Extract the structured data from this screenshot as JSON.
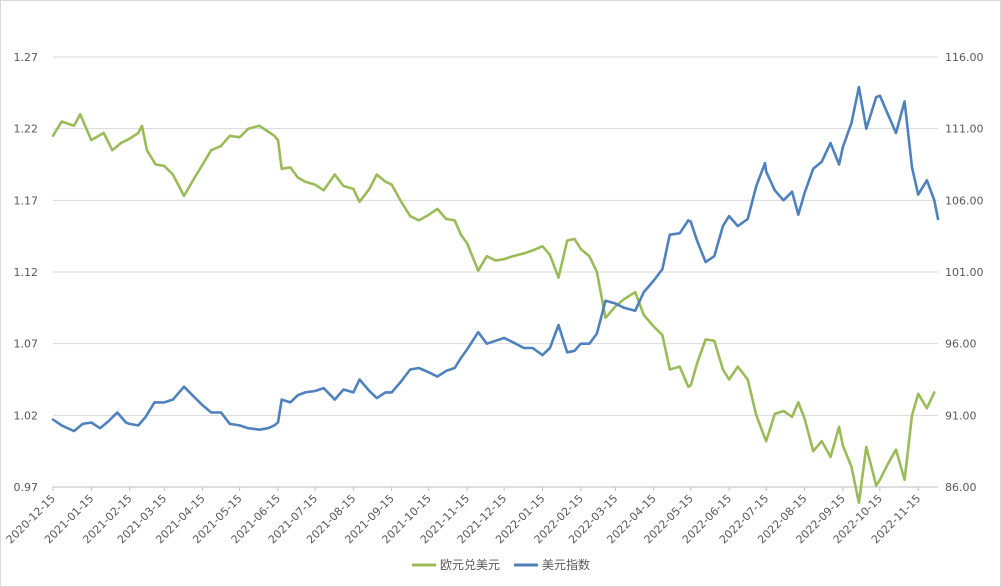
{
  "chart_data": {
    "type": "line",
    "title": "",
    "xlabel": "",
    "ylabel": "",
    "grid": true,
    "legend_position": "bottom",
    "x_tick_labels": [
      "2020-12-15",
      "2021-01-15",
      "2021-02-15",
      "2021-03-15",
      "2021-04-15",
      "2021-05-15",
      "2021-06-15",
      "2021-07-15",
      "2021-08-15",
      "2021-09-15",
      "2021-10-15",
      "2021-11-15",
      "2021-12-15",
      "2022-01-15",
      "2022-02-15",
      "2022-03-15",
      "2022-04-15",
      "2022-05-15",
      "2022-06-15",
      "2022-07-15",
      "2022-08-15",
      "2022-09-15",
      "2022-10-15",
      "2022-11-15"
    ],
    "x_range": [
      "2020-12-15",
      "2022-12-01"
    ],
    "y_left": {
      "min": 0.97,
      "max": 1.27,
      "ticks": [
        "0.97",
        "1.02",
        "1.07",
        "1.12",
        "1.17",
        "1.22",
        "1.27"
      ]
    },
    "y_right": {
      "min": 86,
      "max": 116,
      "ticks": [
        "86.00",
        "91.00",
        "96.00",
        "101.00",
        "106.00",
        "111.00",
        "116.00"
      ]
    },
    "series": [
      {
        "name": "欧元兑美元",
        "axis": "left",
        "color": "#9bbb59",
        "points": [
          [
            "2020-12-15",
            1.215
          ],
          [
            "2020-12-22",
            1.225
          ],
          [
            "2021-01-01",
            1.222
          ],
          [
            "2021-01-06",
            1.23
          ],
          [
            "2021-01-10",
            1.222
          ],
          [
            "2021-01-15",
            1.212
          ],
          [
            "2021-01-25",
            1.217
          ],
          [
            "2021-02-01",
            1.205
          ],
          [
            "2021-02-08",
            1.21
          ],
          [
            "2021-02-15",
            1.213
          ],
          [
            "2021-02-22",
            1.217
          ],
          [
            "2021-02-25",
            1.222
          ],
          [
            "2021-03-01",
            1.205
          ],
          [
            "2021-03-08",
            1.195
          ],
          [
            "2021-03-15",
            1.194
          ],
          [
            "2021-03-22",
            1.188
          ],
          [
            "2021-03-31",
            1.173
          ],
          [
            "2021-04-08",
            1.185
          ],
          [
            "2021-04-15",
            1.195
          ],
          [
            "2021-04-22",
            1.205
          ],
          [
            "2021-04-30",
            1.208
          ],
          [
            "2021-05-07",
            1.215
          ],
          [
            "2021-05-15",
            1.214
          ],
          [
            "2021-05-22",
            1.22
          ],
          [
            "2021-05-31",
            1.222
          ],
          [
            "2021-06-07",
            1.218
          ],
          [
            "2021-06-12",
            1.215
          ],
          [
            "2021-06-15",
            1.212
          ],
          [
            "2021-06-18",
            1.192
          ],
          [
            "2021-06-25",
            1.193
          ],
          [
            "2021-07-01",
            1.186
          ],
          [
            "2021-07-07",
            1.183
          ],
          [
            "2021-07-15",
            1.181
          ],
          [
            "2021-07-22",
            1.177
          ],
          [
            "2021-07-31",
            1.188
          ],
          [
            "2021-08-07",
            1.18
          ],
          [
            "2021-08-15",
            1.178
          ],
          [
            "2021-08-20",
            1.169
          ],
          [
            "2021-08-28",
            1.178
          ],
          [
            "2021-09-03",
            1.188
          ],
          [
            "2021-09-10",
            1.183
          ],
          [
            "2021-09-15",
            1.181
          ],
          [
            "2021-09-22",
            1.17
          ],
          [
            "2021-09-30",
            1.159
          ],
          [
            "2021-10-07",
            1.156
          ],
          [
            "2021-10-15",
            1.16
          ],
          [
            "2021-10-22",
            1.164
          ],
          [
            "2021-10-29",
            1.157
          ],
          [
            "2021-11-05",
            1.156
          ],
          [
            "2021-11-10",
            1.146
          ],
          [
            "2021-11-15",
            1.14
          ],
          [
            "2021-11-24",
            1.121
          ],
          [
            "2021-12-01",
            1.131
          ],
          [
            "2021-12-08",
            1.128
          ],
          [
            "2021-12-15",
            1.129
          ],
          [
            "2021-12-22",
            1.131
          ],
          [
            "2021-12-31",
            1.133
          ],
          [
            "2022-01-07",
            1.135
          ],
          [
            "2022-01-15",
            1.138
          ],
          [
            "2022-01-21",
            1.132
          ],
          [
            "2022-01-28",
            1.116
          ],
          [
            "2022-02-04",
            1.142
          ],
          [
            "2022-02-10",
            1.143
          ],
          [
            "2022-02-15",
            1.136
          ],
          [
            "2022-02-22",
            1.131
          ],
          [
            "2022-02-28",
            1.12
          ],
          [
            "2022-03-07",
            1.088
          ],
          [
            "2022-03-15",
            1.096
          ],
          [
            "2022-03-22",
            1.101
          ],
          [
            "2022-03-31",
            1.106
          ],
          [
            "2022-04-07",
            1.09
          ],
          [
            "2022-04-15",
            1.082
          ],
          [
            "2022-04-22",
            1.076
          ],
          [
            "2022-04-28",
            1.052
          ],
          [
            "2022-05-06",
            1.054
          ],
          [
            "2022-05-13",
            1.04
          ],
          [
            "2022-05-15",
            1.041
          ],
          [
            "2022-05-20",
            1.056
          ],
          [
            "2022-05-27",
            1.073
          ],
          [
            "2022-06-03",
            1.072
          ],
          [
            "2022-06-10",
            1.052
          ],
          [
            "2022-06-15",
            1.045
          ],
          [
            "2022-06-22",
            1.054
          ],
          [
            "2022-06-30",
            1.045
          ],
          [
            "2022-07-07",
            1.02
          ],
          [
            "2022-07-14",
            1.004
          ],
          [
            "2022-07-15",
            1.002
          ],
          [
            "2022-07-22",
            1.021
          ],
          [
            "2022-07-29",
            1.023
          ],
          [
            "2022-08-05",
            1.019
          ],
          [
            "2022-08-10",
            1.029
          ],
          [
            "2022-08-15",
            1.018
          ],
          [
            "2022-08-22",
            0.995
          ],
          [
            "2022-08-29",
            1.002
          ],
          [
            "2022-09-05",
            0.991
          ],
          [
            "2022-09-12",
            1.012
          ],
          [
            "2022-09-15",
            0.999
          ],
          [
            "2022-09-22",
            0.984
          ],
          [
            "2022-09-28",
            0.959
          ],
          [
            "2022-10-04",
            0.998
          ],
          [
            "2022-10-12",
            0.971
          ],
          [
            "2022-10-15",
            0.975
          ],
          [
            "2022-10-22",
            0.987
          ],
          [
            "2022-10-28",
            0.996
          ],
          [
            "2022-11-04",
            0.975
          ],
          [
            "2022-11-10",
            1.02
          ],
          [
            "2022-11-15",
            1.035
          ],
          [
            "2022-11-22",
            1.025
          ],
          [
            "2022-11-28",
            1.036
          ]
        ]
      },
      {
        "name": "美元指数",
        "axis": "right",
        "color": "#4f81bd",
        "points": [
          [
            "2020-12-15",
            90.7
          ],
          [
            "2020-12-22",
            90.3
          ],
          [
            "2021-01-01",
            89.9
          ],
          [
            "2021-01-08",
            90.4
          ],
          [
            "2021-01-15",
            90.5
          ],
          [
            "2021-01-22",
            90.1
          ],
          [
            "2021-01-29",
            90.6
          ],
          [
            "2021-02-05",
            91.2
          ],
          [
            "2021-02-12",
            90.5
          ],
          [
            "2021-02-15",
            90.4
          ],
          [
            "2021-02-22",
            90.3
          ],
          [
            "2021-02-28",
            90.9
          ],
          [
            "2021-03-07",
            91.9
          ],
          [
            "2021-03-15",
            91.9
          ],
          [
            "2021-03-22",
            92.1
          ],
          [
            "2021-03-31",
            93.0
          ],
          [
            "2021-04-08",
            92.3
          ],
          [
            "2021-04-15",
            91.7
          ],
          [
            "2021-04-22",
            91.2
          ],
          [
            "2021-04-30",
            91.2
          ],
          [
            "2021-05-07",
            90.4
          ],
          [
            "2021-05-15",
            90.3
          ],
          [
            "2021-05-22",
            90.1
          ],
          [
            "2021-05-31",
            90.0
          ],
          [
            "2021-06-07",
            90.1
          ],
          [
            "2021-06-12",
            90.3
          ],
          [
            "2021-06-15",
            90.5
          ],
          [
            "2021-06-18",
            92.1
          ],
          [
            "2021-06-25",
            91.9
          ],
          [
            "2021-07-01",
            92.4
          ],
          [
            "2021-07-07",
            92.6
          ],
          [
            "2021-07-15",
            92.7
          ],
          [
            "2021-07-22",
            92.9
          ],
          [
            "2021-07-31",
            92.1
          ],
          [
            "2021-08-07",
            92.8
          ],
          [
            "2021-08-15",
            92.6
          ],
          [
            "2021-08-20",
            93.5
          ],
          [
            "2021-08-28",
            92.7
          ],
          [
            "2021-09-03",
            92.2
          ],
          [
            "2021-09-10",
            92.6
          ],
          [
            "2021-09-15",
            92.6
          ],
          [
            "2021-09-22",
            93.3
          ],
          [
            "2021-09-30",
            94.2
          ],
          [
            "2021-10-07",
            94.3
          ],
          [
            "2021-10-15",
            94.0
          ],
          [
            "2021-10-22",
            93.7
          ],
          [
            "2021-10-29",
            94.1
          ],
          [
            "2021-11-05",
            94.3
          ],
          [
            "2021-11-10",
            95.0
          ],
          [
            "2021-11-15",
            95.6
          ],
          [
            "2021-11-24",
            96.8
          ],
          [
            "2021-12-01",
            96.0
          ],
          [
            "2021-12-08",
            96.2
          ],
          [
            "2021-12-15",
            96.4
          ],
          [
            "2021-12-22",
            96.1
          ],
          [
            "2021-12-31",
            95.7
          ],
          [
            "2022-01-07",
            95.7
          ],
          [
            "2022-01-15",
            95.2
          ],
          [
            "2022-01-21",
            95.7
          ],
          [
            "2022-01-28",
            97.3
          ],
          [
            "2022-02-04",
            95.4
          ],
          [
            "2022-02-10",
            95.5
          ],
          [
            "2022-02-15",
            96.0
          ],
          [
            "2022-02-22",
            96.0
          ],
          [
            "2022-02-28",
            96.7
          ],
          [
            "2022-03-07",
            99.0
          ],
          [
            "2022-03-15",
            98.8
          ],
          [
            "2022-03-22",
            98.5
          ],
          [
            "2022-03-31",
            98.3
          ],
          [
            "2022-04-07",
            99.6
          ],
          [
            "2022-04-15",
            100.4
          ],
          [
            "2022-04-22",
            101.2
          ],
          [
            "2022-04-28",
            103.6
          ],
          [
            "2022-05-06",
            103.7
          ],
          [
            "2022-05-13",
            104.6
          ],
          [
            "2022-05-15",
            104.5
          ],
          [
            "2022-05-20",
            103.2
          ],
          [
            "2022-05-27",
            101.7
          ],
          [
            "2022-06-03",
            102.1
          ],
          [
            "2022-06-10",
            104.2
          ],
          [
            "2022-06-15",
            104.9
          ],
          [
            "2022-06-22",
            104.2
          ],
          [
            "2022-06-30",
            104.7
          ],
          [
            "2022-07-07",
            107.0
          ],
          [
            "2022-07-14",
            108.6
          ],
          [
            "2022-07-15",
            108.0
          ],
          [
            "2022-07-22",
            106.7
          ],
          [
            "2022-07-29",
            106.0
          ],
          [
            "2022-08-05",
            106.6
          ],
          [
            "2022-08-10",
            105.0
          ],
          [
            "2022-08-15",
            106.5
          ],
          [
            "2022-08-22",
            108.2
          ],
          [
            "2022-08-29",
            108.7
          ],
          [
            "2022-09-05",
            110.0
          ],
          [
            "2022-09-12",
            108.5
          ],
          [
            "2022-09-15",
            109.7
          ],
          [
            "2022-09-22",
            111.4
          ],
          [
            "2022-09-28",
            113.9
          ],
          [
            "2022-10-04",
            111.0
          ],
          [
            "2022-10-12",
            113.2
          ],
          [
            "2022-10-15",
            113.3
          ],
          [
            "2022-10-22",
            111.9
          ],
          [
            "2022-10-28",
            110.7
          ],
          [
            "2022-11-04",
            112.9
          ],
          [
            "2022-11-10",
            108.3
          ],
          [
            "2022-11-15",
            106.4
          ],
          [
            "2022-11-22",
            107.4
          ],
          [
            "2022-11-28",
            106.0
          ],
          [
            "2022-12-01",
            104.7
          ]
        ]
      }
    ]
  }
}
